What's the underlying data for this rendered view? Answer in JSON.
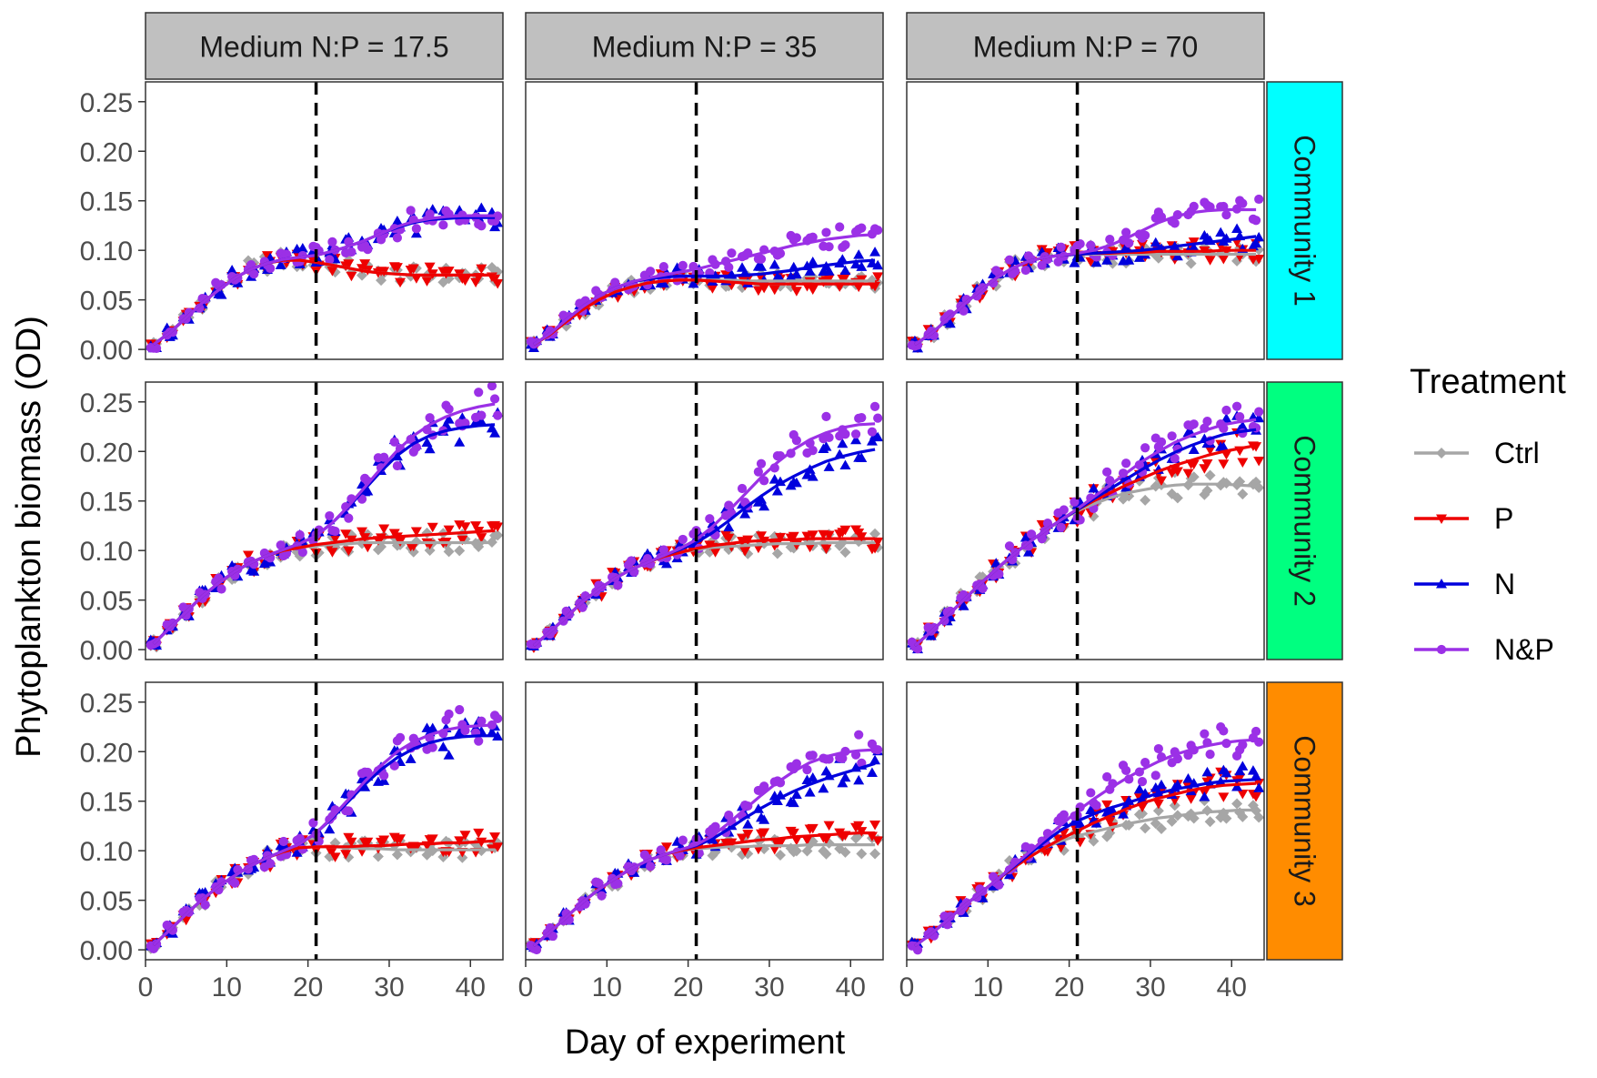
{
  "chart_data": {
    "type": "line",
    "ylabel": "Phytoplankton biomass (OD)",
    "xlabel": "Day of experiment",
    "xlim": [
      0,
      44
    ],
    "ylim": [
      -0.01,
      0.27
    ],
    "x_ticks": [
      0,
      10,
      20,
      30,
      40
    ],
    "x_tick_labels": [
      "0",
      "10",
      "20",
      "30",
      "40"
    ],
    "y_ticks": [
      0,
      0.05,
      0.1,
      0.15,
      0.2,
      0.25
    ],
    "y_tick_labels": [
      "0.00",
      "0.05",
      "0.10",
      "0.15",
      "0.20",
      "0.25"
    ],
    "vline_day": 21,
    "columns": [
      {
        "label": "Medium N:P = 17.5"
      },
      {
        "label": "Medium N:P = 35"
      },
      {
        "label": "Medium N:P = 70"
      }
    ],
    "rows": [
      {
        "label": "Community 1",
        "color": "#00FFFF"
      },
      {
        "label": "Community 2",
        "color": "#00FF80"
      },
      {
        "label": "Community 3",
        "color": "#FF8C00"
      }
    ],
    "legend": {
      "title": "Treatment",
      "position": "right",
      "items": [
        {
          "label": "Ctrl",
          "color": "#A6A6A6",
          "marker": "diamond"
        },
        {
          "label": "P",
          "color": "#EE0000",
          "marker": "triangle-down"
        },
        {
          "label": "N",
          "color": "#0000DD",
          "marker": "triangle-up"
        },
        {
          "label": "N&P",
          "color": "#9B30E6",
          "marker": "circle"
        }
      ]
    },
    "x": [
      1,
      3,
      5,
      7,
      9,
      11,
      13,
      15,
      17,
      19,
      21,
      23,
      25,
      27,
      29,
      31,
      33,
      35,
      37,
      39,
      41,
      43
    ],
    "series_note": "values[row][col] = {Ctrl, P, N, N&P} fitted curve values at each x",
    "values": [
      [
        {
          "Ctrl": [
            0.005,
            0.017,
            0.032,
            0.047,
            0.06,
            0.072,
            0.081,
            0.087,
            0.09,
            0.09,
            0.088,
            0.085,
            0.082,
            0.079,
            0.077,
            0.076,
            0.075,
            0.075,
            0.075,
            0.075,
            0.075,
            0.075
          ],
          "P": [
            0.005,
            0.017,
            0.032,
            0.047,
            0.06,
            0.072,
            0.081,
            0.087,
            0.09,
            0.09,
            0.088,
            0.085,
            0.082,
            0.079,
            0.077,
            0.076,
            0.075,
            0.075,
            0.075,
            0.075,
            0.075,
            0.075
          ],
          "N": [
            0.005,
            0.017,
            0.032,
            0.047,
            0.06,
            0.072,
            0.081,
            0.087,
            0.091,
            0.093,
            0.095,
            0.099,
            0.104,
            0.11,
            0.117,
            0.123,
            0.128,
            0.131,
            0.132,
            0.133,
            0.133,
            0.133
          ],
          "N&P": [
            0.005,
            0.017,
            0.032,
            0.047,
            0.06,
            0.072,
            0.081,
            0.087,
            0.091,
            0.093,
            0.095,
            0.099,
            0.104,
            0.11,
            0.117,
            0.124,
            0.129,
            0.132,
            0.134,
            0.135,
            0.135,
            0.135
          ]
        },
        {
          "Ctrl": [
            0.005,
            0.015,
            0.028,
            0.04,
            0.05,
            0.058,
            0.063,
            0.067,
            0.069,
            0.07,
            0.07,
            0.07,
            0.07,
            0.069,
            0.069,
            0.069,
            0.069,
            0.069,
            0.069,
            0.069,
            0.069,
            0.069
          ],
          "P": [
            0.005,
            0.015,
            0.028,
            0.04,
            0.05,
            0.058,
            0.063,
            0.067,
            0.069,
            0.07,
            0.07,
            0.069,
            0.068,
            0.067,
            0.066,
            0.066,
            0.066,
            0.066,
            0.066,
            0.066,
            0.066,
            0.066
          ],
          "N": [
            0.005,
            0.016,
            0.03,
            0.043,
            0.054,
            0.062,
            0.068,
            0.071,
            0.073,
            0.074,
            0.074,
            0.074,
            0.074,
            0.075,
            0.076,
            0.078,
            0.08,
            0.083,
            0.085,
            0.087,
            0.089,
            0.09
          ],
          "N&P": [
            0.005,
            0.016,
            0.03,
            0.043,
            0.054,
            0.062,
            0.068,
            0.072,
            0.075,
            0.078,
            0.081,
            0.085,
            0.089,
            0.093,
            0.097,
            0.101,
            0.105,
            0.108,
            0.111,
            0.113,
            0.115,
            0.116
          ]
        },
        {
          "Ctrl": [
            0.005,
            0.016,
            0.03,
            0.045,
            0.059,
            0.072,
            0.082,
            0.089,
            0.093,
            0.095,
            0.096,
            0.096,
            0.096,
            0.096,
            0.096,
            0.096,
            0.096,
            0.096,
            0.096,
            0.096,
            0.096,
            0.096
          ],
          "P": [
            0.005,
            0.016,
            0.03,
            0.045,
            0.059,
            0.072,
            0.082,
            0.089,
            0.093,
            0.095,
            0.096,
            0.097,
            0.097,
            0.098,
            0.098,
            0.099,
            0.099,
            0.099,
            0.099,
            0.1,
            0.1,
            0.1
          ],
          "N": [
            0.005,
            0.016,
            0.03,
            0.045,
            0.059,
            0.072,
            0.082,
            0.089,
            0.093,
            0.095,
            0.096,
            0.097,
            0.098,
            0.099,
            0.1,
            0.102,
            0.104,
            0.106,
            0.108,
            0.11,
            0.112,
            0.114
          ],
          "N&P": [
            0.005,
            0.016,
            0.03,
            0.045,
            0.059,
            0.072,
            0.082,
            0.089,
            0.093,
            0.095,
            0.097,
            0.1,
            0.105,
            0.112,
            0.12,
            0.128,
            0.134,
            0.138,
            0.14,
            0.141,
            0.141,
            0.141
          ]
        }
      ],
      [
        {
          "Ctrl": [
            0.006,
            0.022,
            0.038,
            0.054,
            0.067,
            0.079,
            0.088,
            0.095,
            0.1,
            0.103,
            0.105,
            0.106,
            0.107,
            0.108,
            0.108,
            0.108,
            0.108,
            0.108,
            0.108,
            0.108,
            0.108,
            0.108
          ],
          "P": [
            0.006,
            0.022,
            0.038,
            0.054,
            0.067,
            0.079,
            0.088,
            0.095,
            0.1,
            0.103,
            0.106,
            0.108,
            0.11,
            0.112,
            0.113,
            0.114,
            0.115,
            0.116,
            0.117,
            0.118,
            0.119,
            0.12
          ],
          "N": [
            0.006,
            0.022,
            0.038,
            0.054,
            0.067,
            0.079,
            0.088,
            0.095,
            0.101,
            0.107,
            0.115,
            0.128,
            0.144,
            0.162,
            0.18,
            0.196,
            0.208,
            0.216,
            0.221,
            0.224,
            0.226,
            0.227
          ],
          "N&P": [
            0.006,
            0.022,
            0.038,
            0.054,
            0.067,
            0.079,
            0.088,
            0.095,
            0.101,
            0.107,
            0.115,
            0.128,
            0.145,
            0.164,
            0.183,
            0.201,
            0.216,
            0.227,
            0.235,
            0.241,
            0.245,
            0.248
          ]
        },
        {
          "Ctrl": [
            0.004,
            0.018,
            0.033,
            0.048,
            0.061,
            0.072,
            0.081,
            0.088,
            0.094,
            0.098,
            0.101,
            0.103,
            0.104,
            0.105,
            0.106,
            0.107,
            0.107,
            0.107,
            0.108,
            0.108,
            0.108,
            0.108
          ],
          "P": [
            0.004,
            0.018,
            0.033,
            0.048,
            0.061,
            0.072,
            0.081,
            0.088,
            0.094,
            0.098,
            0.102,
            0.105,
            0.107,
            0.109,
            0.11,
            0.111,
            0.111,
            0.112,
            0.112,
            0.112,
            0.112,
            0.112
          ],
          "N": [
            0.004,
            0.018,
            0.033,
            0.048,
            0.061,
            0.072,
            0.081,
            0.088,
            0.095,
            0.101,
            0.108,
            0.118,
            0.13,
            0.143,
            0.155,
            0.166,
            0.175,
            0.183,
            0.19,
            0.195,
            0.199,
            0.202
          ],
          "N&P": [
            0.004,
            0.018,
            0.033,
            0.048,
            0.061,
            0.072,
            0.081,
            0.088,
            0.095,
            0.102,
            0.111,
            0.124,
            0.14,
            0.157,
            0.174,
            0.189,
            0.202,
            0.212,
            0.219,
            0.224,
            0.227,
            0.228
          ]
        },
        {
          "Ctrl": [
            0.004,
            0.018,
            0.034,
            0.05,
            0.066,
            0.081,
            0.095,
            0.108,
            0.12,
            0.131,
            0.14,
            0.147,
            0.153,
            0.158,
            0.161,
            0.164,
            0.166,
            0.167,
            0.167,
            0.167,
            0.166,
            0.165
          ],
          "P": [
            0.004,
            0.018,
            0.034,
            0.05,
            0.066,
            0.081,
            0.095,
            0.108,
            0.12,
            0.131,
            0.141,
            0.15,
            0.158,
            0.166,
            0.173,
            0.18,
            0.186,
            0.191,
            0.196,
            0.2,
            0.203,
            0.206
          ],
          "N": [
            0.004,
            0.018,
            0.034,
            0.05,
            0.066,
            0.081,
            0.095,
            0.108,
            0.12,
            0.131,
            0.141,
            0.152,
            0.162,
            0.172,
            0.182,
            0.191,
            0.199,
            0.206,
            0.212,
            0.217,
            0.22,
            0.222
          ],
          "N&P": [
            0.004,
            0.018,
            0.034,
            0.05,
            0.066,
            0.081,
            0.095,
            0.108,
            0.12,
            0.131,
            0.142,
            0.154,
            0.166,
            0.178,
            0.19,
            0.2,
            0.209,
            0.216,
            0.222,
            0.227,
            0.23,
            0.232
          ]
        }
      ],
      [
        {
          "Ctrl": [
            0.005,
            0.02,
            0.036,
            0.051,
            0.064,
            0.075,
            0.085,
            0.093,
            0.099,
            0.103,
            0.104,
            0.104,
            0.103,
            0.102,
            0.102,
            0.101,
            0.101,
            0.101,
            0.101,
            0.101,
            0.101,
            0.101
          ],
          "P": [
            0.005,
            0.02,
            0.036,
            0.051,
            0.064,
            0.075,
            0.085,
            0.093,
            0.099,
            0.103,
            0.104,
            0.104,
            0.104,
            0.105,
            0.105,
            0.106,
            0.107,
            0.107,
            0.108,
            0.108,
            0.109,
            0.11
          ],
          "N": [
            0.005,
            0.02,
            0.036,
            0.051,
            0.064,
            0.075,
            0.085,
            0.093,
            0.1,
            0.107,
            0.118,
            0.133,
            0.15,
            0.167,
            0.182,
            0.194,
            0.203,
            0.209,
            0.213,
            0.215,
            0.216,
            0.216
          ],
          "N&P": [
            0.005,
            0.02,
            0.036,
            0.051,
            0.064,
            0.075,
            0.085,
            0.093,
            0.1,
            0.107,
            0.118,
            0.134,
            0.152,
            0.17,
            0.186,
            0.2,
            0.21,
            0.217,
            0.222,
            0.225,
            0.226,
            0.227
          ]
        },
        {
          "Ctrl": [
            0.004,
            0.018,
            0.033,
            0.048,
            0.061,
            0.072,
            0.082,
            0.09,
            0.096,
            0.1,
            0.102,
            0.103,
            0.104,
            0.104,
            0.105,
            0.105,
            0.105,
            0.106,
            0.106,
            0.106,
            0.106,
            0.106
          ],
          "P": [
            0.004,
            0.018,
            0.033,
            0.048,
            0.061,
            0.072,
            0.082,
            0.09,
            0.096,
            0.1,
            0.103,
            0.105,
            0.107,
            0.109,
            0.111,
            0.112,
            0.114,
            0.115,
            0.116,
            0.117,
            0.118,
            0.118
          ],
          "N": [
            0.004,
            0.018,
            0.033,
            0.048,
            0.061,
            0.072,
            0.082,
            0.09,
            0.096,
            0.101,
            0.105,
            0.112,
            0.122,
            0.133,
            0.143,
            0.152,
            0.16,
            0.167,
            0.173,
            0.178,
            0.183,
            0.188
          ],
          "N&P": [
            0.004,
            0.018,
            0.033,
            0.048,
            0.061,
            0.072,
            0.082,
            0.09,
            0.096,
            0.101,
            0.106,
            0.115,
            0.128,
            0.142,
            0.156,
            0.169,
            0.18,
            0.189,
            0.195,
            0.199,
            0.201,
            0.202
          ]
        },
        {
          "Ctrl": [
            0.004,
            0.016,
            0.03,
            0.044,
            0.057,
            0.07,
            0.082,
            0.093,
            0.103,
            0.11,
            0.115,
            0.119,
            0.123,
            0.127,
            0.13,
            0.133,
            0.135,
            0.137,
            0.139,
            0.14,
            0.141,
            0.141
          ],
          "P": [
            0.004,
            0.016,
            0.03,
            0.044,
            0.057,
            0.07,
            0.082,
            0.093,
            0.103,
            0.112,
            0.12,
            0.128,
            0.135,
            0.142,
            0.148,
            0.153,
            0.157,
            0.161,
            0.164,
            0.166,
            0.167,
            0.168
          ],
          "N": [
            0.004,
            0.016,
            0.03,
            0.044,
            0.057,
            0.07,
            0.083,
            0.096,
            0.109,
            0.121,
            0.13,
            0.137,
            0.143,
            0.148,
            0.153,
            0.158,
            0.162,
            0.165,
            0.168,
            0.17,
            0.171,
            0.172
          ],
          "N&P": [
            0.004,
            0.016,
            0.03,
            0.044,
            0.057,
            0.07,
            0.084,
            0.098,
            0.112,
            0.126,
            0.14,
            0.152,
            0.163,
            0.173,
            0.182,
            0.19,
            0.197,
            0.202,
            0.206,
            0.209,
            0.211,
            0.212
          ]
        }
      ]
    ]
  }
}
